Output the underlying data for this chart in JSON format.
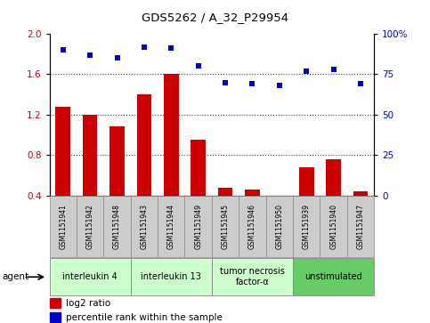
{
  "title": "GDS5262 / A_32_P29954",
  "samples": [
    "GSM1151941",
    "GSM1151942",
    "GSM1151948",
    "GSM1151943",
    "GSM1151944",
    "GSM1151949",
    "GSM1151945",
    "GSM1151946",
    "GSM1151950",
    "GSM1151939",
    "GSM1151940",
    "GSM1151947"
  ],
  "log2_ratio": [
    1.28,
    1.2,
    1.08,
    1.4,
    1.6,
    0.95,
    0.48,
    0.46,
    0.4,
    0.68,
    0.76,
    0.44
  ],
  "percentile": [
    90,
    87,
    85,
    92,
    91,
    80,
    70,
    69,
    68,
    77,
    78,
    69
  ],
  "ylim_left": [
    0.4,
    2.0
  ],
  "ylim_right": [
    0,
    100
  ],
  "yticks_left": [
    0.4,
    0.8,
    1.2,
    1.6,
    2.0
  ],
  "yticks_right": [
    0,
    25,
    50,
    75,
    100
  ],
  "groups": [
    {
      "label": "interleukin 4",
      "indices": [
        0,
        1,
        2
      ],
      "color": "#ccffcc"
    },
    {
      "label": "interleukin 13",
      "indices": [
        3,
        4,
        5
      ],
      "color": "#ccffcc"
    },
    {
      "label": "tumor necrosis\nfactor-α",
      "indices": [
        6,
        7,
        8
      ],
      "color": "#ccffcc"
    },
    {
      "label": "unstimulated",
      "indices": [
        9,
        10,
        11
      ],
      "color": "#66cc66"
    }
  ],
  "bar_color": "#cc0000",
  "dot_color": "#0000cc",
  "bar_bottom": 0.4,
  "agent_label": "agent",
  "legend_bar": "log2 ratio",
  "legend_dot": "percentile rank within the sample",
  "sample_box_color": "#cccccc",
  "group_border_color": "#888888",
  "hgrid_color": "#444444",
  "hgrid_vals": [
    0.8,
    1.2,
    1.6
  ]
}
